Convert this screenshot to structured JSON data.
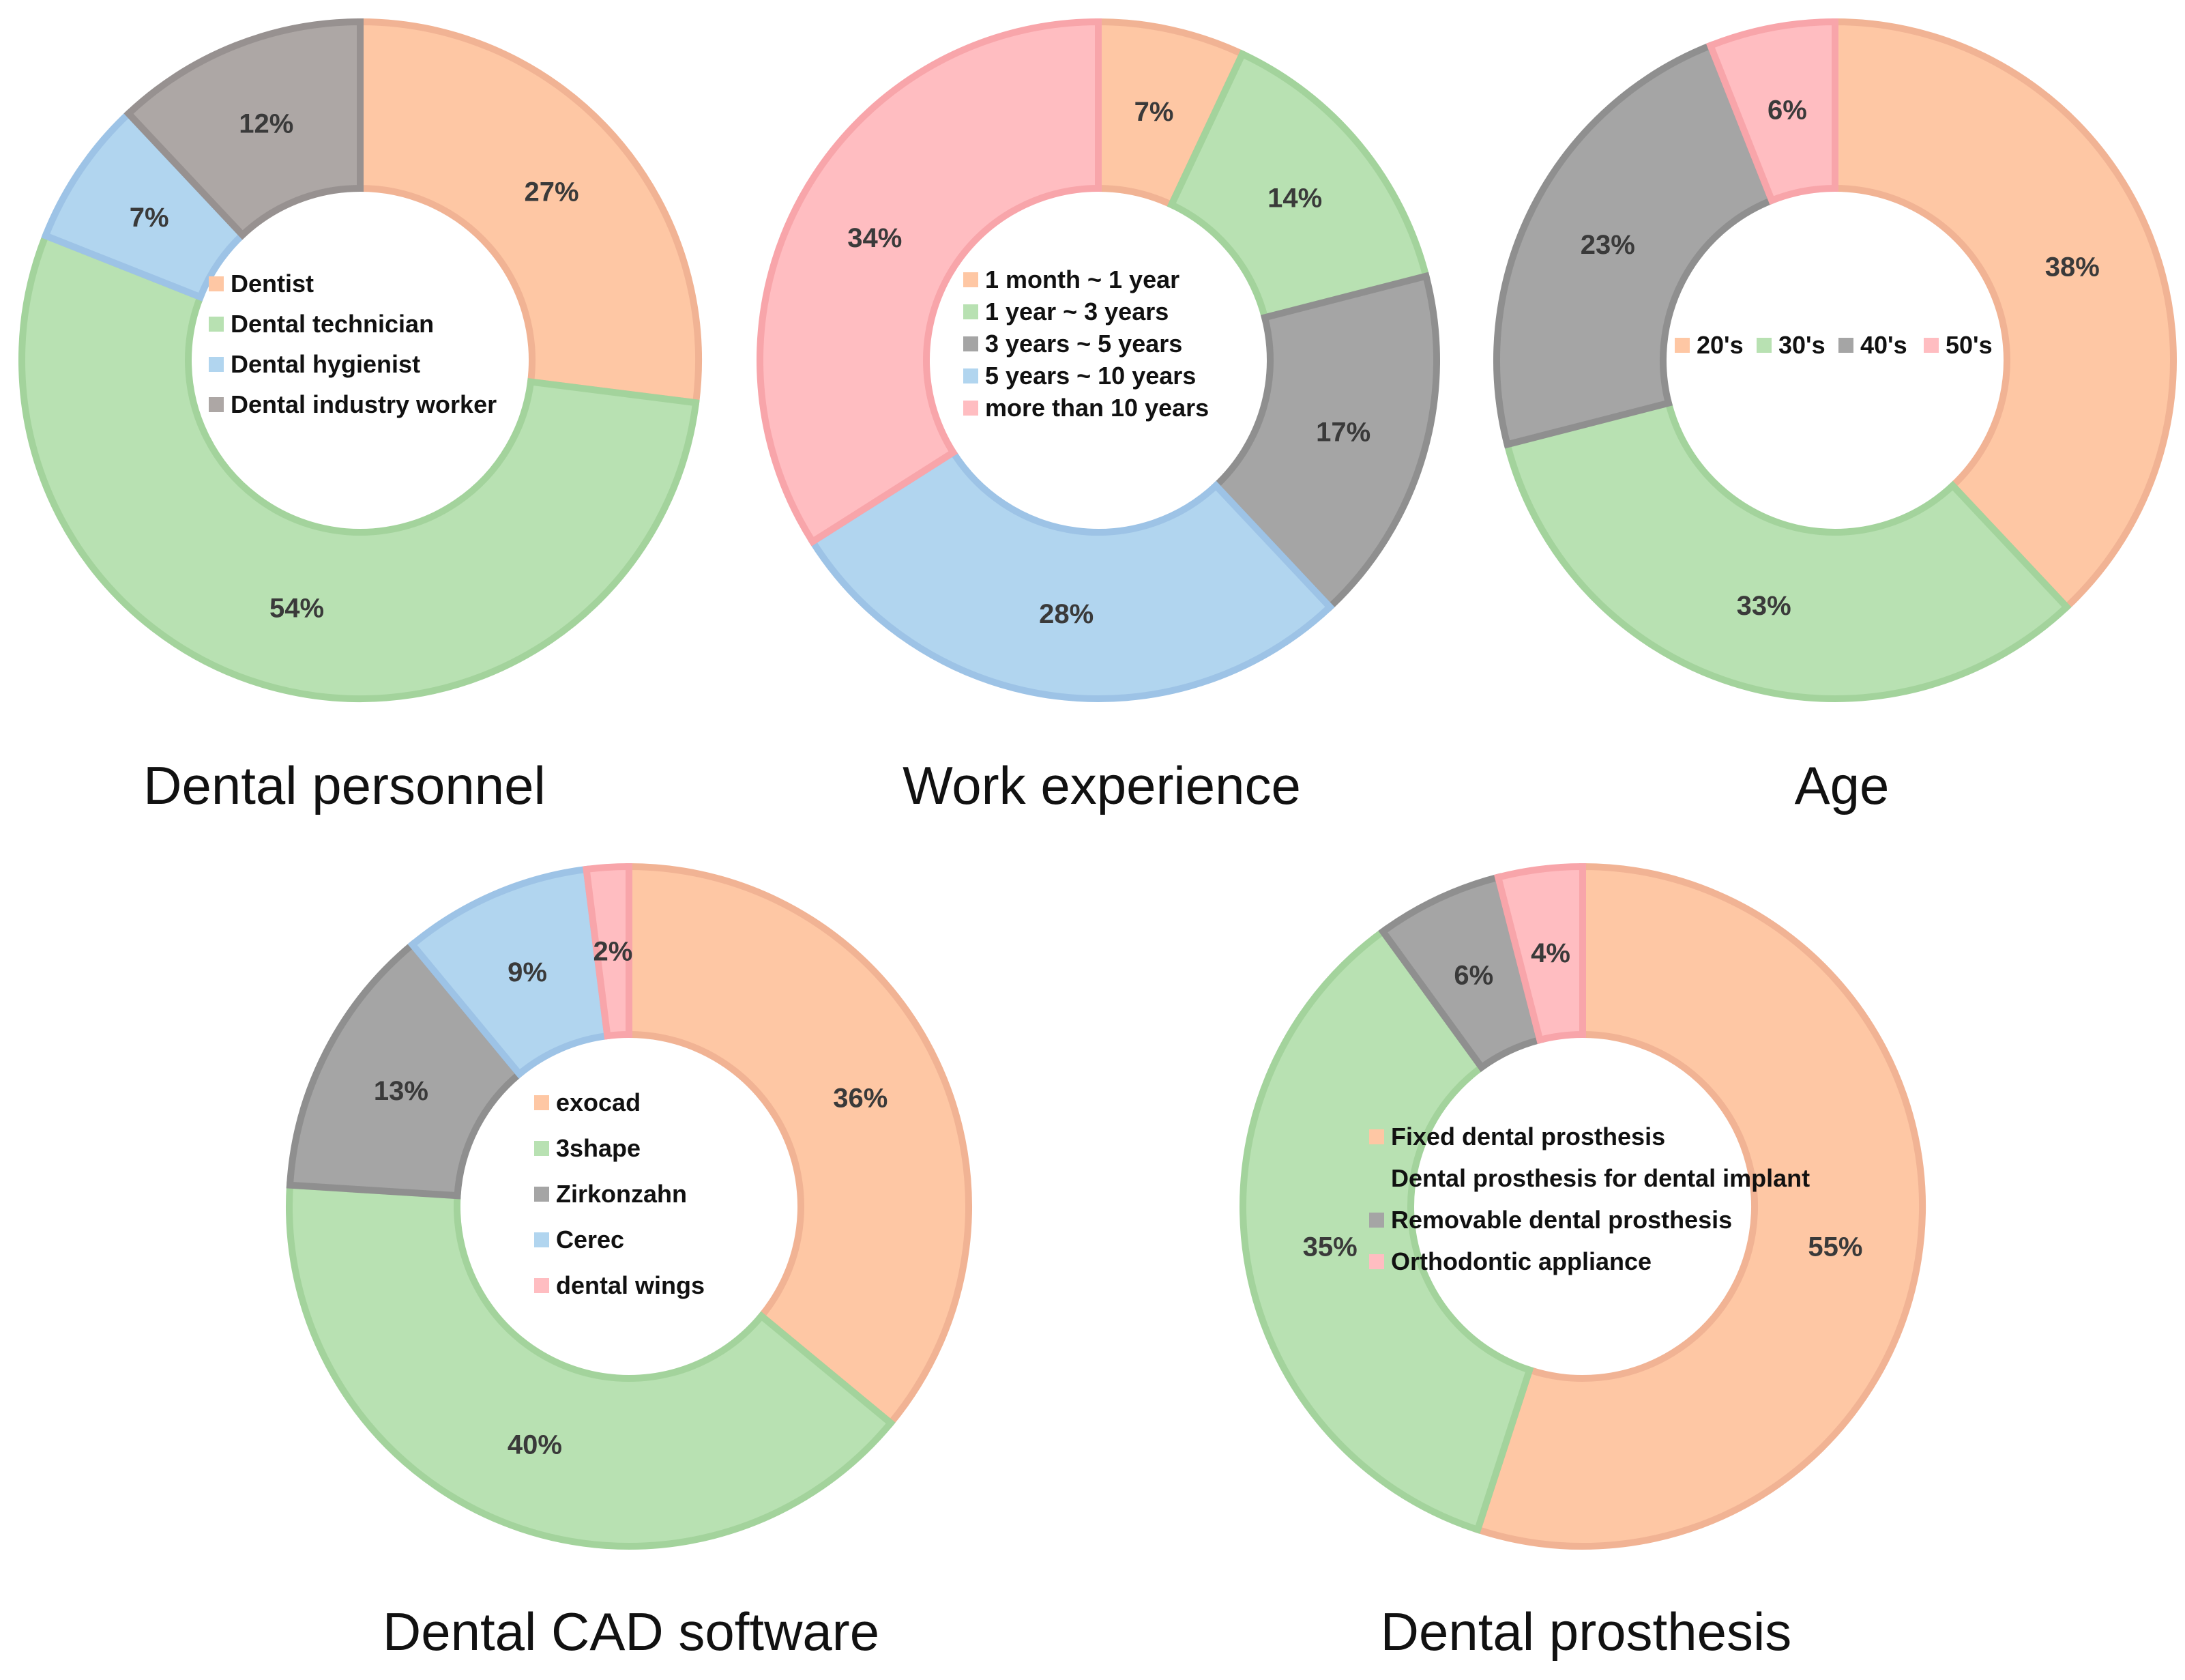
{
  "figure": {
    "palette": {
      "orange": "#FEC7A4",
      "orange_edge": "#F1B394",
      "green": "#B8E1B2",
      "green_edge": "#A3D39C",
      "blue": "#B1D5EF",
      "blue_edge": "#9DC3E6",
      "gray": "#A5A5A5",
      "gray_edge": "#8F8F8F",
      "taupe": "#ADA7A5",
      "taupe_edge": "#979190",
      "pink": "#FFBDC1",
      "pink_edge": "#F8A5AA"
    }
  },
  "chart_data": [
    {
      "type": "pie",
      "variant": "donut",
      "title": "Dental personnel",
      "legend_layout": "vertical",
      "legend_position": "center",
      "series": [
        {
          "name": "Dentist",
          "value": 27,
          "label": "27%",
          "color": "#FEC7A4",
          "edge": "#F1B394"
        },
        {
          "name": "Dental technician",
          "value": 54,
          "label": "54%",
          "color": "#B8E1B2",
          "edge": "#A3D39C"
        },
        {
          "name": "Dental hygienist",
          "value": 7,
          "label": "7%",
          "color": "#B1D5EF",
          "edge": "#9DC3E6"
        },
        {
          "name": "Dental industry worker",
          "value": 12,
          "label": "12%",
          "color": "#ADA7A5",
          "edge": "#979190"
        }
      ]
    },
    {
      "type": "pie",
      "variant": "donut",
      "title": "Work experience",
      "legend_layout": "vertical",
      "legend_position": "center",
      "series": [
        {
          "name": "1 month ~ 1 year",
          "value": 7,
          "label": "7%",
          "color": "#FEC7A4",
          "edge": "#F1B394"
        },
        {
          "name": "1 year ~ 3 years",
          "value": 14,
          "label": "14%",
          "color": "#B8E1B2",
          "edge": "#A3D39C"
        },
        {
          "name": "3 years ~  5 years",
          "value": 17,
          "label": "17%",
          "color": "#A5A5A5",
          "edge": "#8F8F8F"
        },
        {
          "name": "5 years ~ 10 years",
          "value": 28,
          "label": "28%",
          "color": "#B1D5EF",
          "edge": "#9DC3E6"
        },
        {
          "name": "more than 10 years",
          "value": 34,
          "label": "34%",
          "color": "#FFBDC1",
          "edge": "#F8A5AA"
        }
      ]
    },
    {
      "type": "pie",
      "variant": "donut",
      "title": "Age",
      "legend_layout": "horizontal",
      "legend_position": "center",
      "series": [
        {
          "name": "20's",
          "value": 38,
          "label": "38%",
          "color": "#FEC7A4",
          "edge": "#F1B394"
        },
        {
          "name": "30's",
          "value": 33,
          "label": "33%",
          "color": "#B8E1B2",
          "edge": "#A3D39C"
        },
        {
          "name": "40's",
          "value": 23,
          "label": "23%",
          "color": "#A5A5A5",
          "edge": "#8F8F8F"
        },
        {
          "name": "50's",
          "value": 6,
          "label": "6%",
          "color": "#FFBDC1",
          "edge": "#F8A5AA"
        }
      ]
    },
    {
      "type": "pie",
      "variant": "donut",
      "title": "Dental CAD software",
      "legend_layout": "vertical",
      "legend_position": "center",
      "series": [
        {
          "name": "exocad",
          "value": 36,
          "label": "36%",
          "color": "#FEC7A4",
          "edge": "#F1B394"
        },
        {
          "name": "3shape",
          "value": 40,
          "label": "40%",
          "color": "#B8E1B2",
          "edge": "#A3D39C"
        },
        {
          "name": "Zirkonzahn",
          "value": 13,
          "label": "13%",
          "color": "#A5A5A5",
          "edge": "#8F8F8F"
        },
        {
          "name": "Cerec",
          "value": 9,
          "label": "9%",
          "color": "#B1D5EF",
          "edge": "#9DC3E6"
        },
        {
          "name": "dental wings",
          "value": 2,
          "label": "2%",
          "color": "#FFBDC1",
          "edge": "#F8A5AA"
        }
      ]
    },
    {
      "type": "pie",
      "variant": "donut",
      "title": "Dental prosthesis",
      "legend_layout": "vertical",
      "legend_position": "center",
      "series": [
        {
          "name": "Fixed dental prosthesis",
          "value": 55,
          "label": "55%",
          "color": "#FEC7A4",
          "edge": "#F1B394"
        },
        {
          "name": "Dental prosthesis for dental implant",
          "value": 35,
          "label": "35%",
          "color": "#B8E1B2",
          "edge": "#A3D39C"
        },
        {
          "name": "Removable dental prosthesis",
          "value": 6,
          "label": "6%",
          "color": "#A5A5A5",
          "edge": "#8F8F8F"
        },
        {
          "name": "Orthodontic appliance",
          "value": 4,
          "label": "4%",
          "color": "#FFBDC1",
          "edge": "#F8A5AA"
        }
      ]
    }
  ]
}
